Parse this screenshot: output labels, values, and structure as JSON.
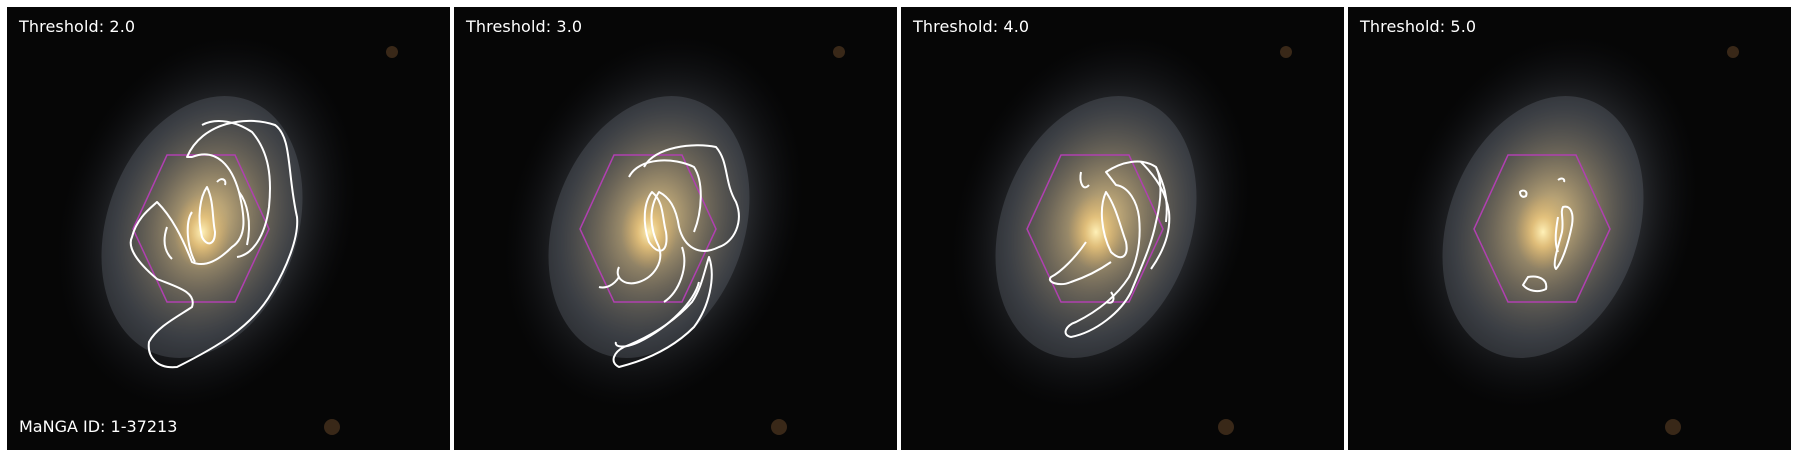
{
  "figure": {
    "manga_id_label": "MaNGA ID: 1-37213",
    "hexagon_color": "#b040b0",
    "contour_color": "#ffffff",
    "panels": [
      {
        "threshold_label": "Threshold: 2.0"
      },
      {
        "threshold_label": "Threshold: 3.0"
      },
      {
        "threshold_label": "Threshold: 4.0"
      },
      {
        "threshold_label": "Threshold: 5.0"
      }
    ]
  }
}
